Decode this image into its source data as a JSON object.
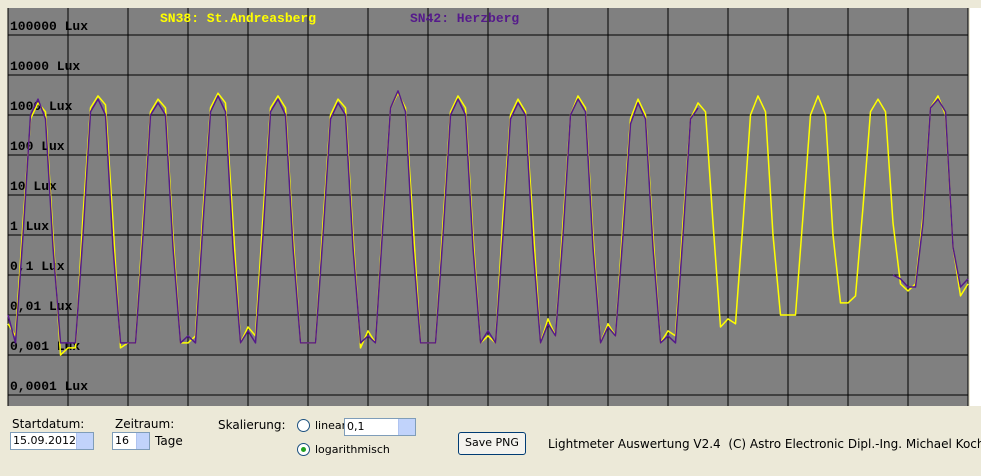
{
  "chart_data": {
    "type": "line",
    "legend_position": "top",
    "log_y": true,
    "grid": true,
    "background": "#808080",
    "grid_color": "#000000",
    "xlim": [
      0,
      16
    ],
    "xticks": [
      0,
      1,
      2,
      3,
      4,
      5,
      6,
      7,
      8,
      9,
      10,
      11,
      12,
      13,
      14,
      15,
      16
    ],
    "ylim": [
      5.3e-05,
      473000
    ],
    "yticks": [
      {
        "value": 100000,
        "label": "100000 Lux"
      },
      {
        "value": 10000,
        "label": "10000 Lux"
      },
      {
        "value": 1000,
        "label": "1000 Lux"
      },
      {
        "value": 100,
        "label": "100 Lux"
      },
      {
        "value": 10,
        "label": "10 Lux"
      },
      {
        "value": 1,
        "label": "1 Lux"
      },
      {
        "value": 0.1,
        "label": "0,1 Lux"
      },
      {
        "value": 0.01,
        "label": "0,01 Lux"
      },
      {
        "value": 0.001,
        "label": "0,001 Lux"
      },
      {
        "value": 0.0001,
        "label": "0,0001 Lux"
      }
    ],
    "x": [
      0,
      0.125,
      0.25,
      0.375,
      0.5,
      0.625,
      0.75,
      0.875,
      1,
      1.125,
      1.25,
      1.375,
      1.5,
      1.625,
      1.75,
      1.875,
      2,
      2.125,
      2.25,
      2.375,
      2.5,
      2.625,
      2.75,
      2.875,
      3,
      3.125,
      3.25,
      3.375,
      3.5,
      3.625,
      3.75,
      3.875,
      4,
      4.125,
      4.25,
      4.375,
      4.5,
      4.625,
      4.75,
      4.875,
      5,
      5.125,
      5.25,
      5.375,
      5.5,
      5.625,
      5.75,
      5.875,
      6,
      6.125,
      6.25,
      6.375,
      6.5,
      6.625,
      6.75,
      6.875,
      7,
      7.125,
      7.25,
      7.375,
      7.5,
      7.625,
      7.75,
      7.875,
      8,
      8.125,
      8.25,
      8.375,
      8.5,
      8.625,
      8.75,
      8.875,
      9,
      9.125,
      9.25,
      9.375,
      9.5,
      9.625,
      9.75,
      9.875,
      10,
      10.125,
      10.25,
      10.375,
      10.5,
      10.625,
      10.75,
      10.875,
      11,
      11.125,
      11.25,
      11.375,
      11.5,
      11.625,
      11.75,
      11.875,
      12,
      12.125,
      12.25,
      12.375,
      12.5,
      12.625,
      12.75,
      12.875,
      13,
      13.125,
      13.25,
      13.375,
      13.5,
      13.625,
      13.75,
      13.875,
      14,
      14.125,
      14.25,
      14.375,
      14.5,
      14.625,
      14.75,
      14.875,
      15,
      15.125,
      15.25,
      15.375,
      15.5,
      15.625,
      15.75,
      15.875,
      16
    ],
    "series": [
      {
        "name": "SN38: St.Andreasberg",
        "color": "#ffff00",
        "values": [
          0.006,
          0.003,
          2,
          800,
          2000,
          1200,
          1,
          0.001,
          0.0015,
          0.0015,
          3,
          1500,
          3000,
          1800,
          2,
          0.0015,
          0.002,
          0.002,
          2,
          1200,
          2500,
          1500,
          1,
          0.002,
          0.002,
          0.003,
          4,
          1500,
          3500,
          2000,
          2,
          0.002,
          0.005,
          0.003,
          3,
          1500,
          3000,
          1500,
          1,
          0.002,
          0.002,
          0.002,
          2,
          1000,
          2500,
          1500,
          1,
          0.0015,
          0.004,
          0.002,
          3,
          1500,
          3500,
          1500,
          2,
          0.002,
          0.002,
          0.002,
          2,
          1200,
          3000,
          1500,
          1,
          0.002,
          0.003,
          0.002,
          3,
          1000,
          2500,
          1200,
          2,
          0.002,
          0.008,
          0.003,
          2,
          1000,
          3000,
          1500,
          1,
          0.002,
          0.006,
          0.003,
          2,
          800,
          2500,
          1000,
          1,
          0.002,
          0.004,
          0.003,
          2,
          800,
          2000,
          1200,
          2,
          0.005,
          0.008,
          0.006,
          2,
          1000,
          3000,
          1200,
          1,
          0.01,
          0.01,
          0.01,
          3,
          1000,
          3000,
          1000,
          1,
          0.02,
          0.02,
          0.03,
          5,
          1200,
          2500,
          1200,
          2,
          0.06,
          0.04,
          0.06,
          3,
          1500,
          3000,
          1000,
          0.5,
          0.03,
          0.06
        ]
      },
      {
        "name": "SN42: Herzberg",
        "color": "#551a8b",
        "values": [
          0.01,
          0.002,
          1,
          1000,
          2500,
          800,
          0.5,
          0.002,
          0.002,
          0.002,
          1,
          1200,
          2500,
          1000,
          0.5,
          0.002,
          0.002,
          0.002,
          1,
          1000,
          2000,
          1000,
          0.5,
          0.002,
          0.003,
          0.002,
          2,
          1200,
          3000,
          1200,
          0.5,
          0.002,
          0.004,
          0.002,
          1,
          1200,
          2500,
          1000,
          0.5,
          0.002,
          0.002,
          0.002,
          1,
          800,
          2000,
          1000,
          0.5,
          0.002,
          0.003,
          0.002,
          2,
          1500,
          4000,
          1200,
          0.5,
          0.002,
          0.002,
          0.002,
          1,
          1000,
          2500,
          1000,
          0.5,
          0.002,
          0.004,
          0.002,
          1,
          800,
          2000,
          1000,
          0.5,
          0.002,
          0.006,
          0.003,
          1,
          1000,
          2500,
          1200,
          0.5,
          0.002,
          0.005,
          0.003,
          1,
          600,
          2000,
          800,
          0.5,
          0.002,
          0.003,
          0.002,
          1,
          800,
          1500,
          null,
          null,
          null,
          null,
          null,
          null,
          null,
          null,
          null,
          null,
          null,
          null,
          null,
          null,
          null,
          null,
          null,
          null,
          null,
          null,
          null,
          null,
          null,
          null,
          null,
          0.1,
          0.08,
          0.05,
          0.05,
          2,
          1500,
          2500,
          1200,
          0.5,
          0.05,
          0.08
        ]
      }
    ]
  },
  "controls": {
    "start_label": "Startdatum:",
    "start_value": "15.09.2012",
    "period_label": "Zeitraum:",
    "period_value": "16",
    "period_unit": "Tage",
    "scale_label": "Skalierung:",
    "linear_label": "linear",
    "linear_value": "0,1",
    "log_label": "logarithmisch",
    "save_button": "Save PNG",
    "footer": "Lightmeter Auswertung V2.4  (C) Astro Electronic Dipl.-Ing. Michael Koch"
  }
}
